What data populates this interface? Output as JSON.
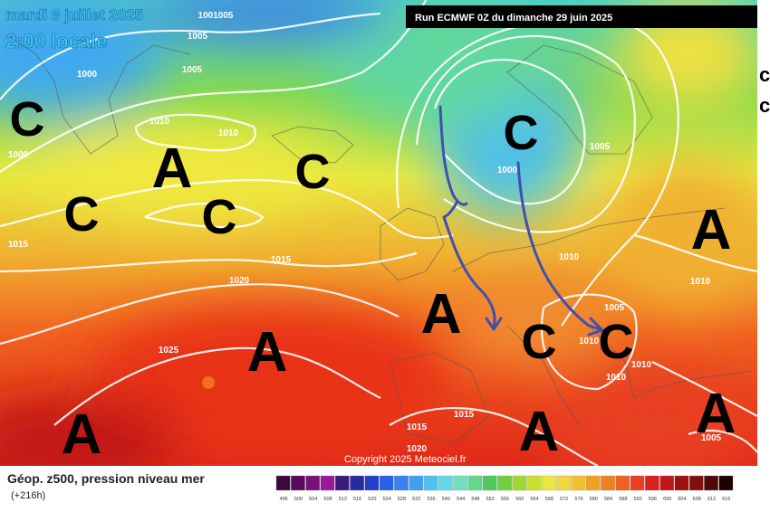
{
  "header": {
    "date": "mardi 8 juillet 2025",
    "time": "2:00 locale",
    "run": "Run ECMWF 0Z du dimanche 29 juin 2025"
  },
  "map": {
    "centers": [
      "C",
      "A",
      "C",
      "C",
      "C",
      "C",
      "A",
      "A",
      "A",
      "C",
      "C",
      "A",
      "A",
      "A"
    ],
    "edge": [
      "c",
      "c"
    ],
    "isobars": [
      1001005,
      1005,
      1000,
      1005,
      1010,
      1010,
      1000,
      1015,
      1015,
      1020,
      1025,
      1005,
      1000,
      1010,
      1010,
      1005,
      1010,
      1010,
      1010,
      1015,
      1015,
      1020,
      1005
    ],
    "copyright": "Copyright 2025 Meteociel.fr"
  },
  "footer": {
    "title": "Géop. z500, pression niveau mer",
    "lead": "(+216h)"
  },
  "scale": {
    "values": [
      496,
      500,
      504,
      508,
      512,
      516,
      520,
      524,
      528,
      532,
      536,
      540,
      544,
      548,
      552,
      556,
      560,
      564,
      568,
      572,
      576,
      580,
      584,
      588,
      592,
      596,
      600,
      604,
      608,
      612,
      616
    ],
    "colors": [
      "#3a0a3a",
      "#5a0a5a",
      "#7a107a",
      "#9a189a",
      "#3a1a7a",
      "#2a2aa0",
      "#2040c8",
      "#2a60e8",
      "#3a80f0",
      "#40a0f0",
      "#50c0f0",
      "#60d8e8",
      "#70e0c0",
      "#60d890",
      "#50c860",
      "#70d040",
      "#a0d830",
      "#c8e030",
      "#e8e840",
      "#f0d840",
      "#f0c030",
      "#f0a020",
      "#f08020",
      "#f06020",
      "#e84020",
      "#d82020",
      "#c01818",
      "#a01010",
      "#801010",
      "#500808",
      "#200000"
    ]
  }
}
